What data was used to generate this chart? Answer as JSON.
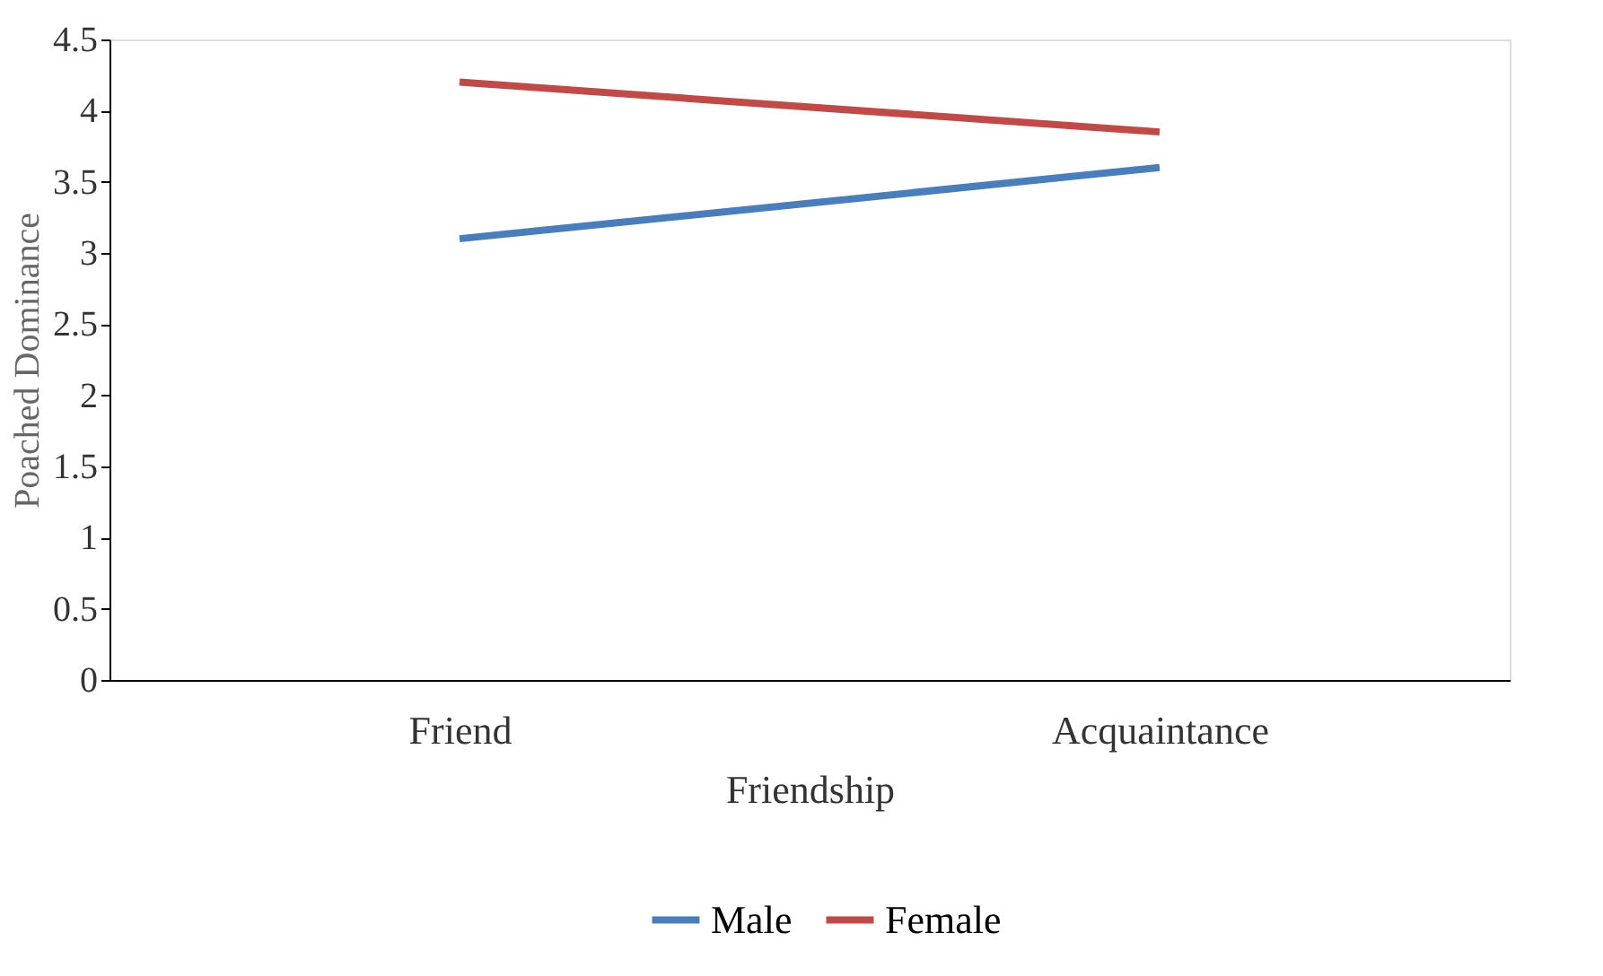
{
  "chart_data": {
    "type": "line",
    "xlabel": "Friendship",
    "ylabel": "Poached Dominance",
    "categories": [
      "Friend",
      "Acquaintance"
    ],
    "series": [
      {
        "name": "Male",
        "color": "#4a7ebb",
        "values": [
          3.1,
          3.6
        ]
      },
      {
        "name": "Female",
        "color": "#be4b48",
        "values": [
          4.2,
          3.85
        ]
      }
    ],
    "ylim": [
      0,
      4.5
    ],
    "yticks": [
      0,
      0.5,
      1,
      1.5,
      2,
      2.5,
      3,
      3.5,
      4,
      4.5
    ],
    "grid": false,
    "legend": "bottom",
    "marker": "none",
    "line_style": "solid"
  }
}
